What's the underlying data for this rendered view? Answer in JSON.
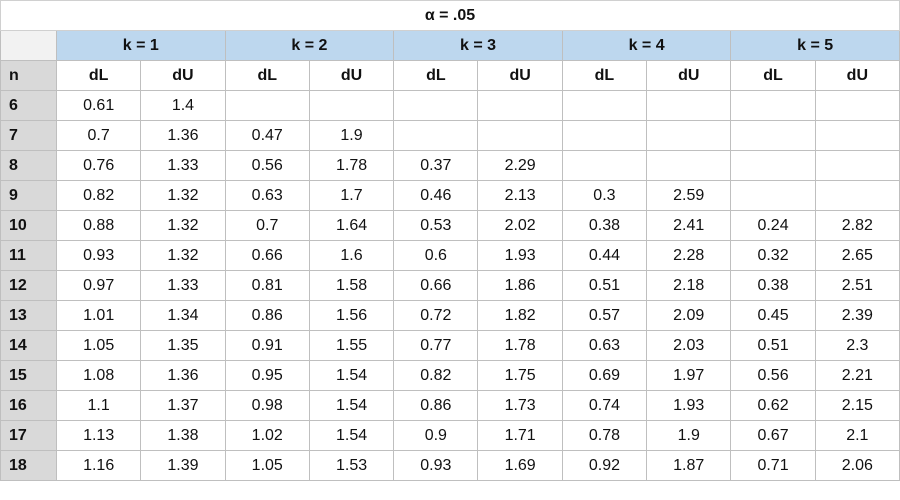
{
  "table": {
    "title": "α = .05",
    "groups": [
      "k = 1",
      "k = 2",
      "k = 3",
      "k = 4",
      "k = 5"
    ],
    "header": [
      "n",
      "dL",
      "dU",
      "dL",
      "dU",
      "dL",
      "dU",
      "dL",
      "dU",
      "dL",
      "dU"
    ],
    "rows": [
      [
        6,
        0.61,
        1.4,
        null,
        null,
        null,
        null,
        null,
        null,
        null,
        null
      ],
      [
        7,
        0.7,
        1.36,
        0.47,
        1.9,
        null,
        null,
        null,
        null,
        null,
        null
      ],
      [
        8,
        0.76,
        1.33,
        0.56,
        1.78,
        0.37,
        2.29,
        null,
        null,
        null,
        null
      ],
      [
        9,
        0.82,
        1.32,
        0.63,
        1.7,
        0.46,
        2.13,
        0.3,
        2.59,
        null,
        null
      ],
      [
        10,
        0.88,
        1.32,
        0.7,
        1.64,
        0.53,
        2.02,
        0.38,
        2.41,
        0.24,
        2.82
      ],
      [
        11,
        0.93,
        1.32,
        0.66,
        1.6,
        0.6,
        1.93,
        0.44,
        2.28,
        0.32,
        2.65
      ],
      [
        12,
        0.97,
        1.33,
        0.81,
        1.58,
        0.66,
        1.86,
        0.51,
        2.18,
        0.38,
        2.51
      ],
      [
        13,
        1.01,
        1.34,
        0.86,
        1.56,
        0.72,
        1.82,
        0.57,
        2.09,
        0.45,
        2.39
      ],
      [
        14,
        1.05,
        1.35,
        0.91,
        1.55,
        0.77,
        1.78,
        0.63,
        2.03,
        0.51,
        2.3
      ],
      [
        15,
        1.08,
        1.36,
        0.95,
        1.54,
        0.82,
        1.75,
        0.69,
        1.97,
        0.56,
        2.21
      ],
      [
        16,
        1.1,
        1.37,
        0.98,
        1.54,
        0.86,
        1.73,
        0.74,
        1.93,
        0.62,
        2.15
      ],
      [
        17,
        1.13,
        1.38,
        1.02,
        1.54,
        0.9,
        1.71,
        0.78,
        1.9,
        0.67,
        2.1
      ],
      [
        18,
        1.16,
        1.39,
        1.05,
        1.53,
        0.93,
        1.69,
        0.92,
        1.87,
        0.71,
        2.06
      ]
    ]
  }
}
